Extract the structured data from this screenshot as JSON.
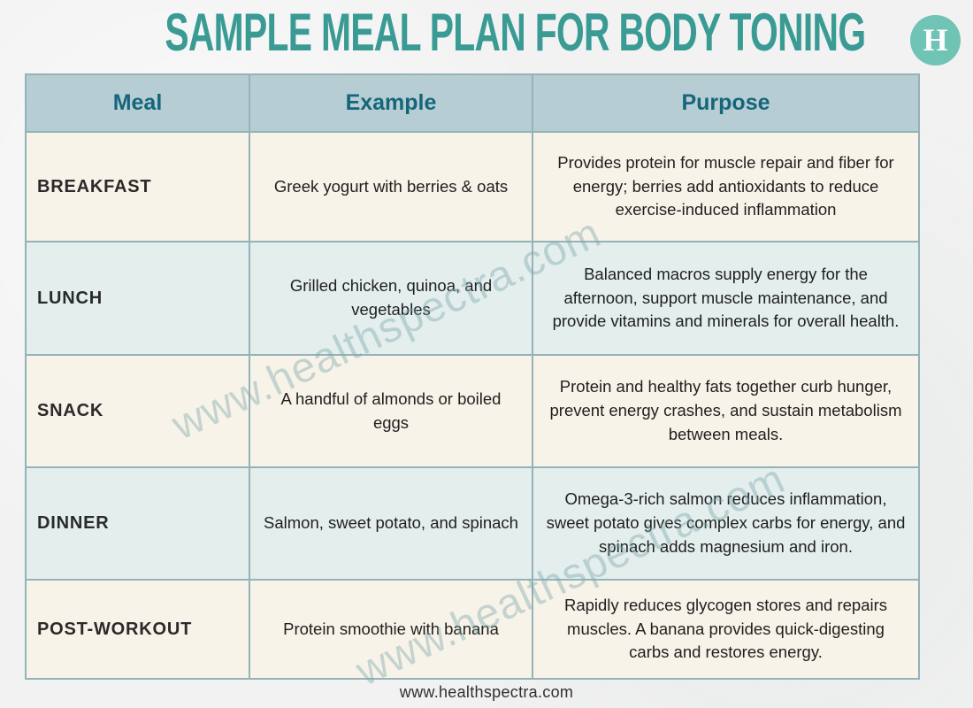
{
  "page": {
    "title": "SAMPLE MEAL PLAN FOR BODY TONING",
    "logo_letter": "H",
    "watermark": "www.healthspectra.com",
    "footer": "www.healthspectra.com"
  },
  "colors": {
    "title": "#3a9a94",
    "header_bg": "#b6ced3",
    "header_text": "#15657b",
    "row_cream": "#f8f3e8",
    "row_blue": "#e3eeed",
    "border": "#93b2b9",
    "logo_bg": "#6fc4b6",
    "body_text": "#1f1f1f",
    "page_bg": "#f1f2f1"
  },
  "table": {
    "columns": [
      "Meal",
      "Example",
      "Purpose"
    ],
    "rows": [
      {
        "meal": "BREAKFAST",
        "example": "Greek yogurt with berries & oats",
        "purpose": "Provides protein for muscle repair and fiber for energy; berries add antioxidants to reduce exercise-induced inflammation"
      },
      {
        "meal": "LUNCH",
        "example": "Grilled chicken, quinoa, and vegetables",
        "purpose": "Balanced macros supply energy for the afternoon, support muscle maintenance, and provide vitamins and minerals for overall health."
      },
      {
        "meal": "SNACK",
        "example": "A handful of almonds or boiled eggs",
        "purpose": "Protein and healthy fats together curb hunger, prevent energy crashes, and sustain metabolism between meals."
      },
      {
        "meal": "DINNER",
        "example": "Salmon, sweet potato, and spinach",
        "purpose": "Omega-3-rich salmon reduces inflammation, sweet potato gives complex carbs for energy, and spinach adds magnesium and iron."
      },
      {
        "meal": "POST-WORKOUT",
        "example": "Protein smoothie with banana",
        "purpose": "Rapidly reduces glycogen stores and repairs muscles. A banana provides quick-digesting carbs and restores energy."
      }
    ]
  }
}
